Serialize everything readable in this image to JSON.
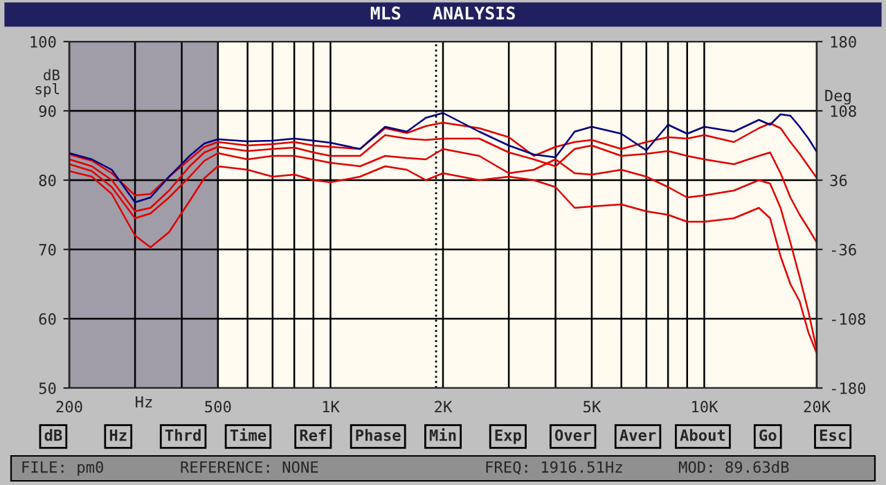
{
  "chart_data": {
    "type": "line",
    "title": "MLS   ANALYSIS",
    "xlabel": "Hz",
    "ylabel": "dB\nspl",
    "y2label": "Deg",
    "x": [
      200,
      230,
      260,
      300,
      330,
      370,
      420,
      460,
      500,
      600,
      700,
      800,
      900,
      1000,
      1200,
      1400,
      1600,
      1800,
      2000,
      2500,
      3000,
      3500,
      4000,
      4500,
      5000,
      6000,
      7000,
      8000,
      9000,
      10000,
      12000,
      14000,
      15000,
      16000,
      17000,
      18000,
      19000,
      20000
    ],
    "series": [
      {
        "color": "#000080",
        "values": [
          83.9,
          83,
          81.5,
          76.8,
          77.5,
          80.5,
          83.5,
          85.3,
          85.9,
          85.6,
          85.7,
          86,
          85.7,
          85.4,
          84.5,
          87.7,
          87,
          89,
          89.7,
          87,
          85,
          83.7,
          83.3,
          87,
          87.7,
          86.7,
          84.3,
          88,
          86.7,
          87.7,
          87,
          88.7,
          88,
          89.5,
          89.3,
          87.7,
          86,
          84.1
        ]
      },
      {
        "color": "#e00000",
        "values": [
          83.7,
          82.8,
          81,
          77.8,
          78,
          80.5,
          83,
          84.8,
          85.5,
          85,
          85.2,
          85.5,
          85,
          84.8,
          84.5,
          87.5,
          86.8,
          87.8,
          88.3,
          87.5,
          86.2,
          83.5,
          84.8,
          85.5,
          85.8,
          84.5,
          85.5,
          86.2,
          86,
          86.5,
          85.5,
          87.5,
          88.2,
          87.5,
          85.5,
          83.8,
          82,
          80.3
        ]
      },
      {
        "color": "#e00000",
        "values": [
          83,
          82,
          80,
          75.5,
          76,
          78.5,
          82,
          84,
          84.8,
          84.2,
          84.5,
          84.7,
          84,
          83.5,
          83.5,
          86.5,
          86,
          85.8,
          86,
          86,
          84,
          83,
          82,
          84.5,
          85,
          83.5,
          83.8,
          84.2,
          83.5,
          83,
          82.3,
          83.5,
          84,
          81,
          77.5,
          75,
          73,
          71
        ]
      },
      {
        "color": "#e00000",
        "values": [
          82.3,
          81.3,
          79,
          74.5,
          75.2,
          77.5,
          80.5,
          82.8,
          83.9,
          83,
          83.5,
          83.5,
          83,
          82.5,
          82,
          83.5,
          83.2,
          83,
          84.5,
          83.5,
          81,
          81.5,
          83,
          81,
          80.8,
          81.5,
          80.5,
          79,
          77.5,
          77.8,
          78.5,
          80,
          79.5,
          76,
          71,
          66,
          61,
          55.5
        ]
      },
      {
        "color": "#e00000",
        "values": [
          81.3,
          80.5,
          78,
          72,
          70.3,
          72.5,
          77,
          80.3,
          82,
          81.5,
          80.5,
          80.8,
          80,
          79.7,
          80.5,
          82,
          81.5,
          80,
          81,
          80,
          80.5,
          80,
          79,
          76,
          76.2,
          76.5,
          75.5,
          75,
          74,
          74,
          74.5,
          76,
          74.5,
          69,
          65,
          62.5,
          58,
          55
        ]
      }
    ],
    "log": "x",
    "xlim": [
      200,
      20000
    ],
    "xticks": [
      200,
      {
        "value": 300,
        "label": null
      },
      {
        "value": 400,
        "label": null
      },
      500,
      {
        "value": 600,
        "label": null
      },
      {
        "value": 700,
        "label": null
      },
      {
        "value": 800,
        "label": null
      },
      {
        "value": 900,
        "label": null
      },
      {
        "value": 1000,
        "label": "1K"
      },
      {
        "value": 2000,
        "label": "2K"
      },
      {
        "value": 3000,
        "label": null
      },
      {
        "value": 4000,
        "label": null
      },
      {
        "value": 5000,
        "label": "5K"
      },
      {
        "value": 6000,
        "label": null
      },
      {
        "value": 7000,
        "label": null
      },
      {
        "value": 8000,
        "label": null
      },
      {
        "value": 9000,
        "label": null
      },
      {
        "value": 10000,
        "label": "10K"
      },
      {
        "value": 20000,
        "label": "20K"
      }
    ],
    "ylim": [
      50,
      100
    ],
    "yticks": [
      50,
      60,
      70,
      80,
      90,
      100
    ],
    "y2lim": [
      -180,
      180
    ],
    "y2ticks": [
      -180,
      -108,
      -36,
      36,
      108,
      180
    ],
    "grid": true,
    "line_style": "solid",
    "marker": "none",
    "bands": [
      {
        "axis": "x",
        "from": 200,
        "to": 500,
        "color": "#a09ca8"
      }
    ],
    "ref_lines": [
      {
        "axis": "x",
        "value": 1916.51,
        "color": "#000000",
        "line_style": "dotted"
      }
    ],
    "annotations": [
      "dB",
      "Hz",
      "Thrd",
      "Time",
      "Ref",
      "Phase",
      "Min",
      "Exp",
      "Over",
      "Aver",
      "About",
      "Go",
      "Esc",
      "FILE: pm0",
      "REFERENCE: NONE",
      "FREQ: 1916.51Hz",
      "MOD: 89.63dB"
    ]
  }
}
